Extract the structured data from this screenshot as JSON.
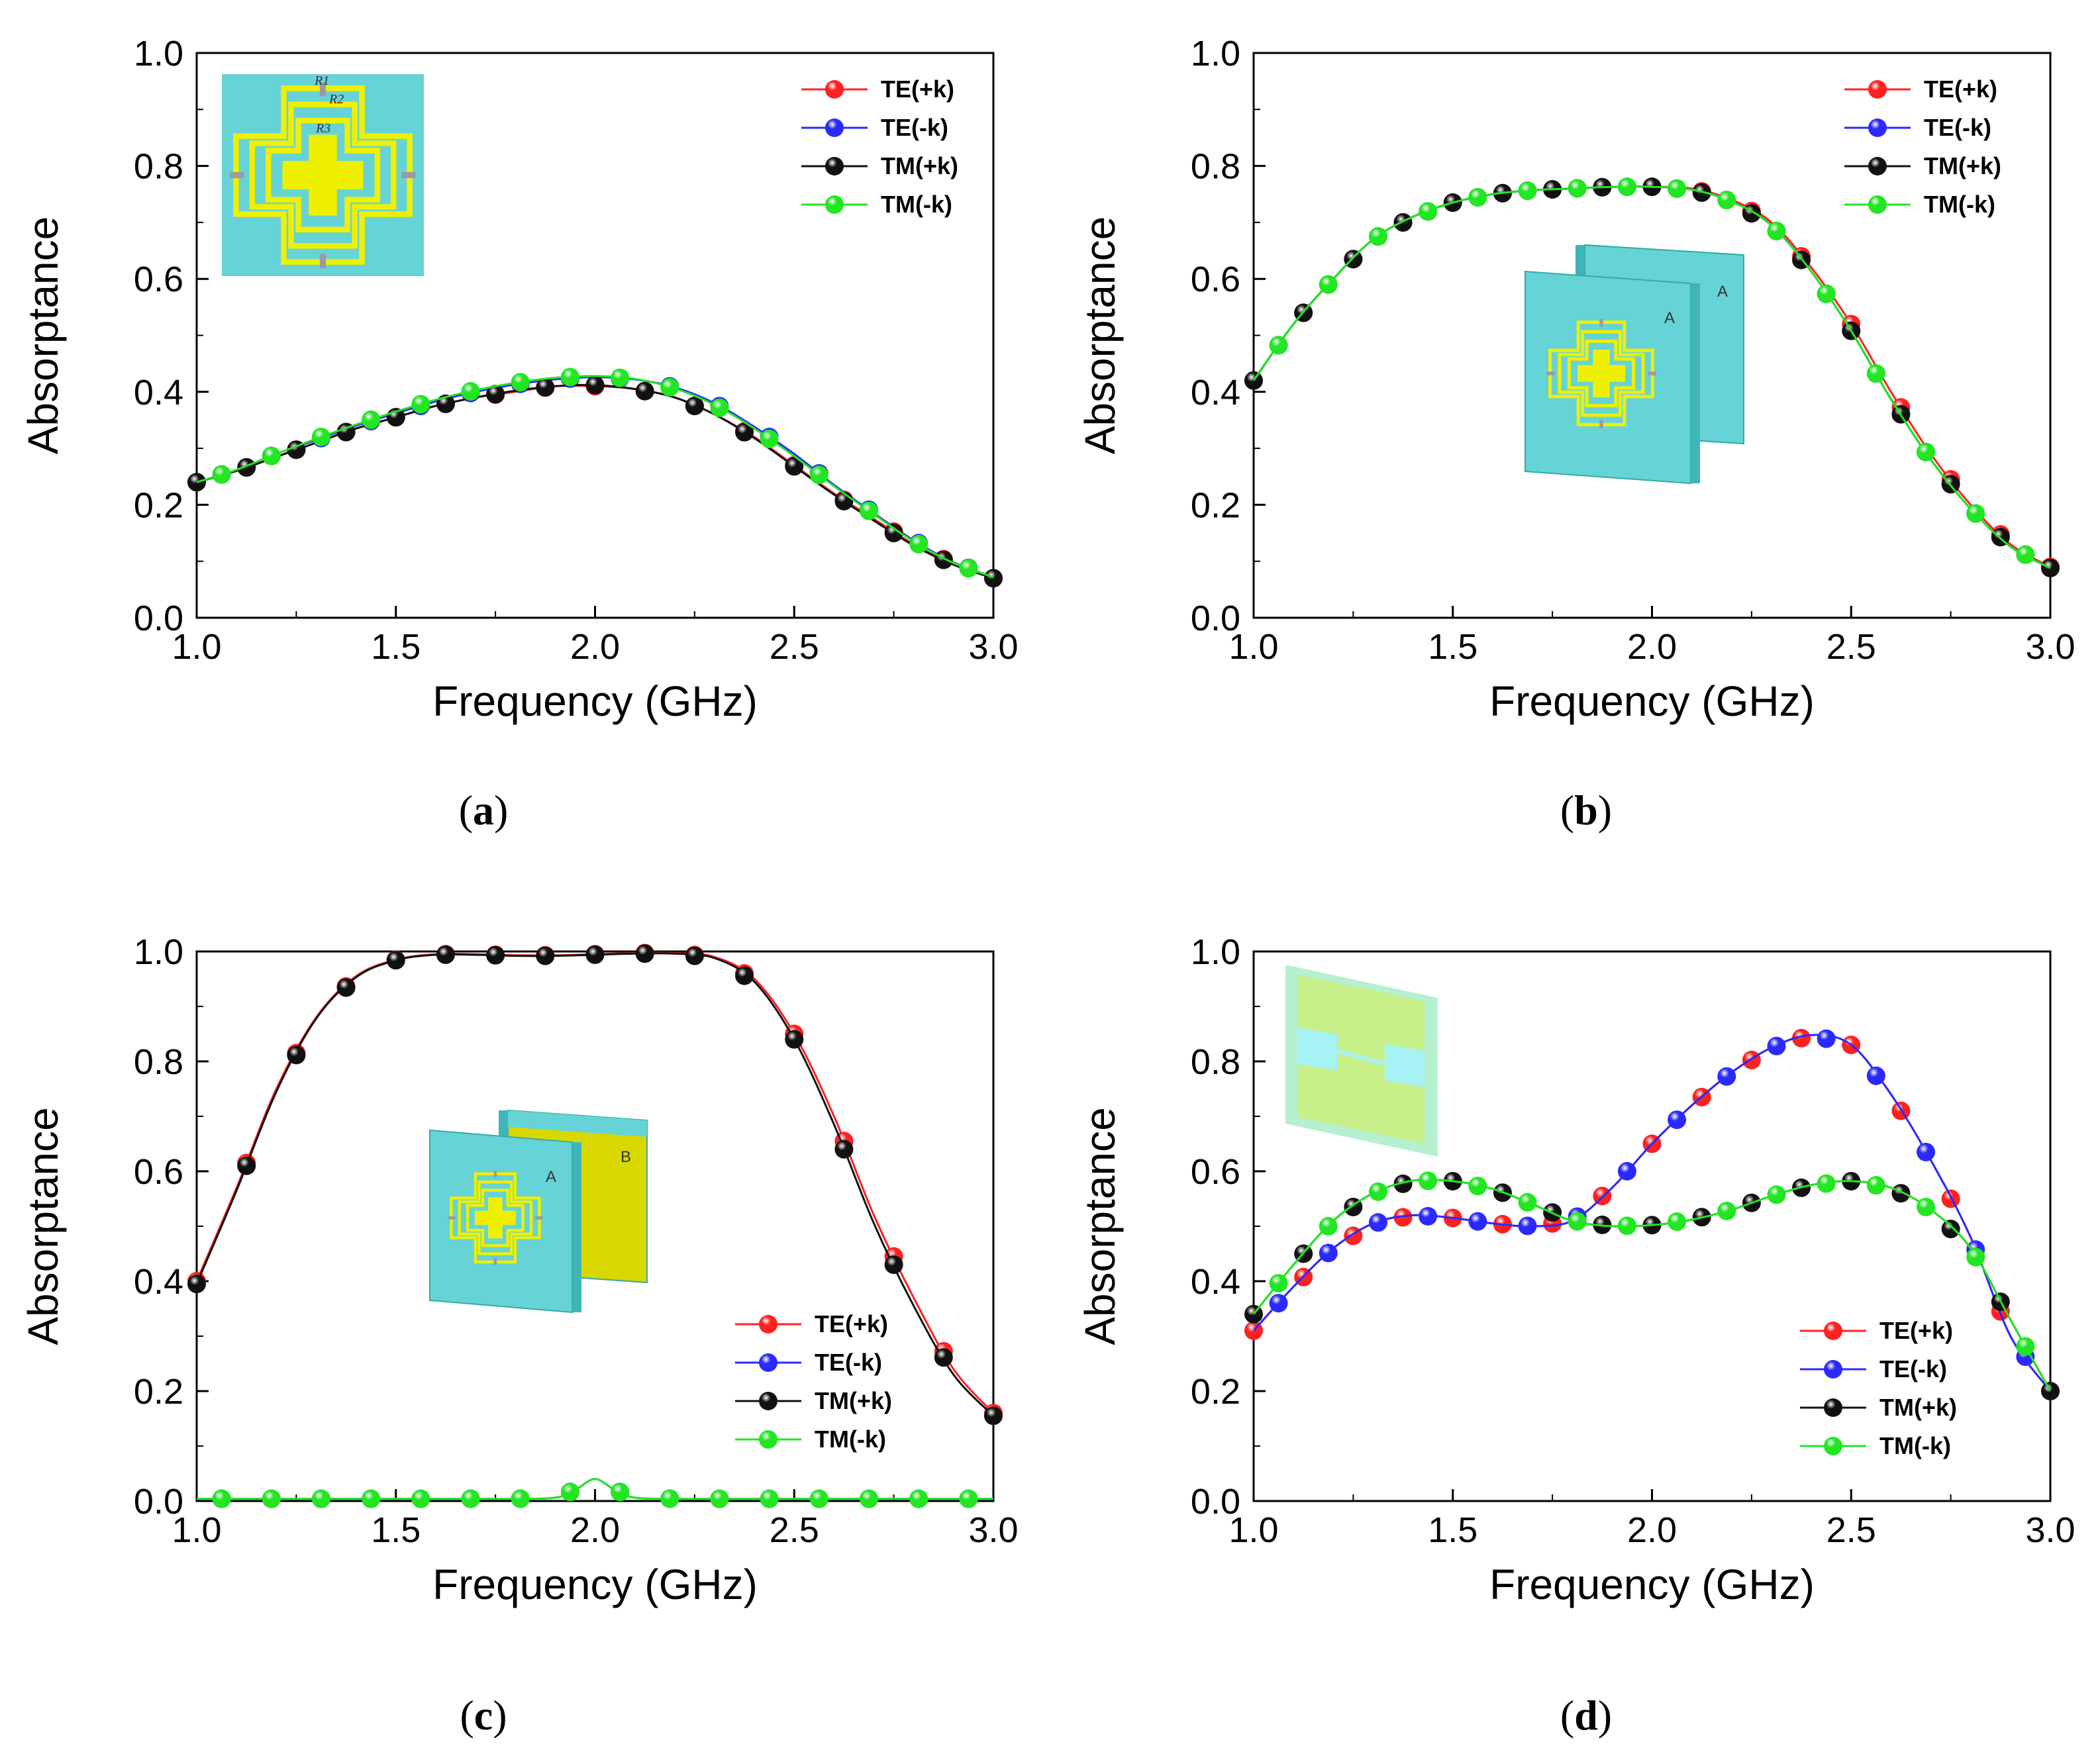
{
  "colors": {
    "TE(+k)": "#ff2020",
    "TE(-k)": "#2a2aff",
    "TM(+k)": "#111111",
    "TM(-k)": "#22e622",
    "teal": "#66d3d6",
    "yellow": "#eef000",
    "gold": "#d8d800"
  },
  "chart_data": [
    {
      "id": "a",
      "type": "line",
      "panel_label": "a",
      "xlabel": "Frequency (GHz)",
      "ylabel": "Absorptance",
      "xlim": [
        1.0,
        3.0
      ],
      "ylim": [
        0.0,
        1.0
      ],
      "xticks": [
        "1.0",
        "1.5",
        "2.0",
        "2.5",
        "3.0"
      ],
      "yticks": [
        "0.0",
        "0.2",
        "0.4",
        "0.6",
        "0.8",
        "1.0"
      ],
      "legend_position": "top-right",
      "inset": "unit-cell",
      "inset_labels": [
        "R1",
        "R2",
        "R3"
      ],
      "series": [
        {
          "name": "TE(+k)",
          "color_key": "TE(+k)",
          "x": [
            1.0,
            1.1,
            1.2,
            1.3,
            1.4,
            1.5,
            1.6,
            1.7,
            1.8,
            1.9,
            2.0,
            2.1,
            2.2,
            2.3,
            2.4,
            2.5,
            2.6,
            2.7,
            2.8,
            2.9,
            3.0
          ],
          "y": [
            0.24,
            0.26,
            0.285,
            0.31,
            0.335,
            0.355,
            0.375,
            0.39,
            0.4,
            0.41,
            0.41,
            0.405,
            0.39,
            0.36,
            0.32,
            0.27,
            0.22,
            0.175,
            0.13,
            0.095,
            0.07
          ]
        },
        {
          "name": "TE(-k)",
          "color_key": "TE(-k)",
          "x": [
            1.0,
            1.1,
            1.2,
            1.3,
            1.4,
            1.5,
            1.6,
            1.7,
            1.8,
            1.9,
            2.0,
            2.1,
            2.2,
            2.3,
            2.4,
            2.5,
            2.6,
            2.7,
            2.8,
            2.9,
            3.0
          ],
          "y": [
            0.24,
            0.262,
            0.29,
            0.315,
            0.34,
            0.362,
            0.383,
            0.4,
            0.413,
            0.422,
            0.426,
            0.422,
            0.408,
            0.38,
            0.338,
            0.29,
            0.235,
            0.185,
            0.137,
            0.098,
            0.072
          ]
        },
        {
          "name": "TM(+k)",
          "color_key": "TM(+k)",
          "x": [
            1.0,
            1.1,
            1.2,
            1.3,
            1.4,
            1.5,
            1.6,
            1.7,
            1.8,
            1.9,
            2.0,
            2.1,
            2.2,
            2.3,
            2.4,
            2.5,
            2.6,
            2.7,
            2.8,
            2.9,
            3.0
          ],
          "y": [
            0.24,
            0.26,
            0.285,
            0.31,
            0.335,
            0.355,
            0.375,
            0.39,
            0.402,
            0.41,
            0.412,
            0.405,
            0.39,
            0.36,
            0.318,
            0.268,
            0.218,
            0.172,
            0.128,
            0.094,
            0.07
          ]
        },
        {
          "name": "TM(-k)",
          "color_key": "TM(-k)",
          "x": [
            1.0,
            1.1,
            1.2,
            1.3,
            1.4,
            1.5,
            1.6,
            1.7,
            1.8,
            1.9,
            2.0,
            2.1,
            2.2,
            2.3,
            2.4,
            2.5,
            2.6,
            2.7,
            2.8,
            2.9,
            3.0
          ],
          "y": [
            0.24,
            0.262,
            0.29,
            0.317,
            0.342,
            0.365,
            0.386,
            0.403,
            0.416,
            0.425,
            0.428,
            0.423,
            0.406,
            0.377,
            0.335,
            0.286,
            0.233,
            0.183,
            0.135,
            0.097,
            0.072
          ]
        }
      ]
    },
    {
      "id": "b",
      "type": "line",
      "panel_label": "b",
      "xlabel": "Frequency (GHz)",
      "ylabel": "Absorptance",
      "xlim": [
        1.0,
        3.0
      ],
      "ylim": [
        0.0,
        1.0
      ],
      "xticks": [
        "1.0",
        "1.5",
        "2.0",
        "2.5",
        "3.0"
      ],
      "yticks": [
        "0.0",
        "0.2",
        "0.4",
        "0.6",
        "0.8",
        "1.0"
      ],
      "legend_position": "top-right",
      "inset": "two-layer-AA",
      "inset_labels": [
        "A",
        "A"
      ],
      "series": [
        {
          "name": "TE(+k)",
          "color_key": "TE(+k)",
          "x": [
            1.0,
            1.1,
            1.2,
            1.3,
            1.4,
            1.5,
            1.6,
            1.7,
            1.8,
            1.9,
            2.0,
            2.1,
            2.2,
            2.3,
            2.4,
            2.5,
            2.6,
            2.7,
            2.8,
            2.9,
            3.0
          ],
          "y": [
            0.42,
            0.52,
            0.6,
            0.67,
            0.71,
            0.735,
            0.75,
            0.757,
            0.76,
            0.763,
            0.763,
            0.76,
            0.74,
            0.7,
            0.62,
            0.52,
            0.4,
            0.29,
            0.2,
            0.13,
            0.09
          ]
        },
        {
          "name": "TE(-k)",
          "color_key": "TE(-k)",
          "x": [
            1.0,
            1.1,
            1.2,
            1.3,
            1.4,
            1.5,
            1.6,
            1.7,
            1.8,
            1.9,
            2.0,
            2.1,
            2.2,
            2.3,
            2.4,
            2.5,
            2.6,
            2.7,
            2.8,
            2.9,
            3.0
          ],
          "y": [
            0.42,
            0.52,
            0.6,
            0.67,
            0.71,
            0.735,
            0.75,
            0.757,
            0.76,
            0.763,
            0.763,
            0.758,
            0.737,
            0.695,
            0.613,
            0.508,
            0.387,
            0.28,
            0.193,
            0.126,
            0.088
          ]
        },
        {
          "name": "TM(+k)",
          "color_key": "TM(+k)",
          "x": [
            1.0,
            1.1,
            1.2,
            1.3,
            1.4,
            1.5,
            1.6,
            1.7,
            1.8,
            1.9,
            2.0,
            2.1,
            2.2,
            2.3,
            2.4,
            2.5,
            2.6,
            2.7,
            2.8,
            2.9,
            3.0
          ],
          "y": [
            0.42,
            0.52,
            0.6,
            0.67,
            0.71,
            0.735,
            0.75,
            0.757,
            0.76,
            0.763,
            0.763,
            0.758,
            0.737,
            0.695,
            0.613,
            0.508,
            0.387,
            0.28,
            0.193,
            0.126,
            0.088
          ]
        },
        {
          "name": "TM(-k)",
          "color_key": "TM(-k)",
          "x": [
            1.0,
            1.1,
            1.2,
            1.3,
            1.4,
            1.5,
            1.6,
            1.7,
            1.8,
            1.9,
            2.0,
            2.1,
            2.2,
            2.3,
            2.4,
            2.5,
            2.6,
            2.7,
            2.8,
            2.9,
            3.0
          ],
          "y": [
            0.42,
            0.52,
            0.6,
            0.67,
            0.71,
            0.735,
            0.75,
            0.757,
            0.76,
            0.763,
            0.763,
            0.758,
            0.737,
            0.695,
            0.613,
            0.508,
            0.387,
            0.28,
            0.193,
            0.126,
            0.088
          ]
        }
      ]
    },
    {
      "id": "c",
      "type": "line",
      "panel_label": "c",
      "xlabel": "Frequency (GHz)",
      "ylabel": "Absorptance",
      "xlim": [
        1.0,
        3.0
      ],
      "ylim": [
        0.0,
        1.0
      ],
      "xticks": [
        "1.0",
        "1.5",
        "2.0",
        "2.5",
        "3.0"
      ],
      "yticks": [
        "0.0",
        "0.2",
        "0.4",
        "0.6",
        "0.8",
        "1.0"
      ],
      "legend_position": "bottom-right",
      "inset": "two-layer-AB",
      "inset_labels": [
        "A",
        "B"
      ],
      "series": [
        {
          "name": "TE(+k)",
          "color_key": "TE(+k)",
          "x": [
            1.0,
            1.1,
            1.2,
            1.3,
            1.4,
            1.5,
            1.6,
            1.7,
            1.8,
            1.9,
            2.0,
            2.1,
            2.2,
            2.3,
            2.4,
            2.5,
            2.6,
            2.7,
            2.8,
            2.9,
            3.0
          ],
          "y": [
            0.4,
            0.57,
            0.75,
            0.88,
            0.955,
            0.985,
            0.995,
            0.995,
            0.993,
            0.993,
            0.995,
            0.997,
            0.997,
            0.99,
            0.95,
            0.85,
            0.7,
            0.52,
            0.37,
            0.24,
            0.16
          ]
        },
        {
          "name": "TE(-k)",
          "color_key": "TE(-k)",
          "x": [
            1.0,
            1.1,
            1.2,
            1.3,
            1.4,
            1.5,
            1.6,
            1.7,
            1.8,
            1.9,
            1.95,
            2.0,
            2.05,
            2.1,
            2.2,
            2.3,
            2.4,
            2.5,
            2.6,
            2.7,
            2.8,
            2.9,
            3.0
          ],
          "y": [
            0.004,
            0.004,
            0.004,
            0.004,
            0.004,
            0.004,
            0.004,
            0.004,
            0.004,
            0.006,
            0.02,
            0.04,
            0.02,
            0.006,
            0.004,
            0.004,
            0.004,
            0.004,
            0.004,
            0.004,
            0.004,
            0.004,
            0.004
          ]
        },
        {
          "name": "TM(+k)",
          "color_key": "TM(+k)",
          "x": [
            1.0,
            1.1,
            1.2,
            1.3,
            1.4,
            1.5,
            1.6,
            1.7,
            1.8,
            1.9,
            2.0,
            2.1,
            2.2,
            2.3,
            2.4,
            2.5,
            2.6,
            2.7,
            2.8,
            2.9,
            3.0
          ],
          "y": [
            0.395,
            0.565,
            0.745,
            0.878,
            0.953,
            0.984,
            0.994,
            0.994,
            0.992,
            0.992,
            0.994,
            0.996,
            0.996,
            0.988,
            0.945,
            0.84,
            0.685,
            0.505,
            0.355,
            0.23,
            0.155
          ]
        },
        {
          "name": "TM(-k)",
          "color_key": "TM(-k)",
          "x": [
            1.0,
            1.1,
            1.2,
            1.3,
            1.4,
            1.5,
            1.6,
            1.7,
            1.8,
            1.9,
            1.95,
            2.0,
            2.05,
            2.1,
            2.2,
            2.3,
            2.4,
            2.5,
            2.6,
            2.7,
            2.8,
            2.9,
            3.0
          ],
          "y": [
            0.004,
            0.004,
            0.004,
            0.004,
            0.004,
            0.004,
            0.004,
            0.004,
            0.004,
            0.006,
            0.02,
            0.04,
            0.02,
            0.006,
            0.004,
            0.004,
            0.004,
            0.004,
            0.004,
            0.004,
            0.004,
            0.004,
            0.004
          ]
        }
      ]
    },
    {
      "id": "d",
      "type": "line",
      "panel_label": "d",
      "xlabel": "Frequency (GHz)",
      "ylabel": "Absorptance",
      "xlim": [
        1.0,
        3.0
      ],
      "ylim": [
        0.0,
        1.0
      ],
      "xticks": [
        "1.0",
        "1.5",
        "2.0",
        "2.5",
        "3.0"
      ],
      "yticks": [
        "0.0",
        "0.2",
        "0.4",
        "0.6",
        "0.8",
        "1.0"
      ],
      "legend_position": "bottom-right",
      "inset": "resonator-sheet",
      "inset_labels": [],
      "series": [
        {
          "name": "TE(+k)",
          "color_key": "TE(+k)",
          "x": [
            1.0,
            1.1,
            1.2,
            1.3,
            1.4,
            1.5,
            1.6,
            1.7,
            1.8,
            1.9,
            2.0,
            2.1,
            2.2,
            2.3,
            2.4,
            2.5,
            2.6,
            2.7,
            2.8,
            2.9,
            3.0
          ],
          "y": [
            0.31,
            0.39,
            0.46,
            0.505,
            0.52,
            0.515,
            0.505,
            0.5,
            0.51,
            0.57,
            0.65,
            0.72,
            0.78,
            0.825,
            0.848,
            0.83,
            0.74,
            0.62,
            0.48,
            0.3,
            0.2
          ]
        },
        {
          "name": "TE(-k)",
          "color_key": "TE(-k)",
          "x": [
            1.0,
            1.1,
            1.2,
            1.3,
            1.4,
            1.5,
            1.6,
            1.7,
            1.8,
            1.9,
            2.0,
            2.1,
            2.2,
            2.3,
            2.4,
            2.5,
            2.6,
            2.7,
            2.8,
            2.9,
            3.0
          ],
          "y": [
            0.31,
            0.39,
            0.46,
            0.505,
            0.52,
            0.515,
            0.505,
            0.5,
            0.51,
            0.57,
            0.65,
            0.72,
            0.78,
            0.825,
            0.848,
            0.83,
            0.74,
            0.62,
            0.48,
            0.3,
            0.2
          ]
        },
        {
          "name": "TM(+k)",
          "color_key": "TM(+k)",
          "x": [
            1.0,
            1.1,
            1.2,
            1.3,
            1.4,
            1.5,
            1.6,
            1.7,
            1.8,
            1.9,
            2.0,
            2.1,
            2.2,
            2.3,
            2.4,
            2.5,
            2.6,
            2.7,
            2.8,
            2.9,
            3.0
          ],
          "y": [
            0.34,
            0.43,
            0.51,
            0.56,
            0.583,
            0.582,
            0.568,
            0.54,
            0.51,
            0.5,
            0.502,
            0.512,
            0.53,
            0.555,
            0.575,
            0.582,
            0.57,
            0.53,
            0.46,
            0.33,
            0.2
          ]
        },
        {
          "name": "TM(-k)",
          "color_key": "TM(-k)",
          "x": [
            1.0,
            1.1,
            1.2,
            1.3,
            1.4,
            1.5,
            1.6,
            1.7,
            1.8,
            1.9,
            2.0,
            2.1,
            2.2,
            2.3,
            2.4,
            2.5,
            2.6,
            2.7,
            2.8,
            2.9,
            3.0
          ],
          "y": [
            0.34,
            0.43,
            0.51,
            0.56,
            0.583,
            0.582,
            0.568,
            0.54,
            0.51,
            0.5,
            0.502,
            0.512,
            0.53,
            0.555,
            0.575,
            0.582,
            0.57,
            0.53,
            0.46,
            0.33,
            0.2
          ]
        }
      ]
    }
  ]
}
